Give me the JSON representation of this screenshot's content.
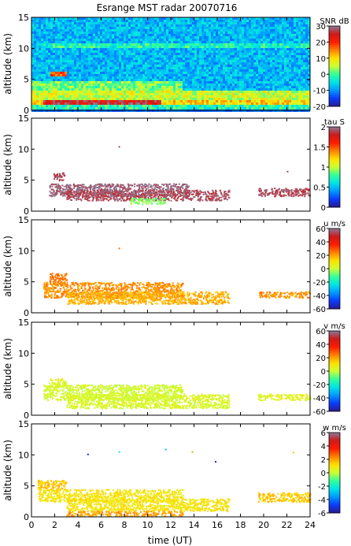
{
  "figure": {
    "title": "Esrange MST radar 20070716",
    "xlabel": "time (UT)",
    "ylabel": "altitude (km)",
    "xlim": [
      0,
      24
    ],
    "x_ticks": [
      "0",
      "2",
      "4",
      "6",
      "8",
      "10",
      "12",
      "14",
      "16",
      "18",
      "20",
      "22",
      "24"
    ],
    "ylim": [
      0,
      15
    ],
    "y_ticks": [
      "0",
      "5",
      "10",
      "15"
    ],
    "colormap": [
      "#2a1a8f",
      "#0a3cff",
      "#0099ff",
      "#00e5e5",
      "#33ff99",
      "#ccff33",
      "#ffe000",
      "#ff8000",
      "#ff1a00",
      "#cc1a1a",
      "#8a7a9a"
    ]
  },
  "chart_data": [
    {
      "type": "heatmap",
      "panel": "snr",
      "colorbar_label": "SNR dB",
      "clim": [
        -20,
        30
      ],
      "colorbar_ticks": [
        "30",
        "20",
        "10",
        "0",
        "-10",
        "-20"
      ],
      "background_value": -8,
      "layers": [
        {
          "altitude": [
            0.3,
            1.0
          ],
          "time": [
            0,
            24
          ],
          "value": -2
        },
        {
          "altitude": [
            1.0,
            2.0
          ],
          "time": [
            0,
            24
          ],
          "value": 10
        },
        {
          "altitude": [
            1.0,
            1.8
          ],
          "time": [
            1,
            11
          ],
          "value": 25
        },
        {
          "altitude": [
            2.0,
            3.5
          ],
          "time": [
            0,
            24
          ],
          "value": 6
        },
        {
          "altitude": [
            3.5,
            5.0
          ],
          "time": [
            0,
            13
          ],
          "value": 2
        },
        {
          "altitude": [
            5.5,
            6.5
          ],
          "time": [
            1.5,
            3
          ],
          "value": 18
        },
        {
          "altitude": [
            10.4,
            10.9
          ],
          "time": [
            1,
            24
          ],
          "value": -2
        }
      ]
    },
    {
      "type": "scatter",
      "panel": "tau",
      "colorbar_label": "tau S",
      "clim": [
        0,
        2
      ],
      "colorbar_ticks": [
        "2",
        "1.5",
        "1",
        "0.5",
        "0"
      ],
      "clusters": [
        {
          "time": [
            1.8,
            2.8
          ],
          "altitude": [
            5.0,
            6.3
          ],
          "value": 1.9
        },
        {
          "time": [
            1.5,
            13.5
          ],
          "altitude": [
            2.5,
            4.5
          ],
          "value": 1.95
        },
        {
          "time": [
            3.0,
            17.0
          ],
          "altitude": [
            1.8,
            3.5
          ],
          "value": 1.9
        },
        {
          "time": [
            8.5,
            11.5
          ],
          "altitude": [
            1.2,
            2.2
          ],
          "value": 0.9
        },
        {
          "time": [
            19.5,
            24.0
          ],
          "altitude": [
            2.5,
            3.8
          ],
          "value": 1.9
        }
      ],
      "points": [
        {
          "time": 7.5,
          "altitude": 10.5,
          "value": 1.9
        },
        {
          "time": 22.0,
          "altitude": 6.5,
          "value": 1.9
        }
      ]
    },
    {
      "type": "scatter",
      "panel": "u",
      "colorbar_label": "u m/s",
      "clim": [
        -60,
        60
      ],
      "colorbar_ticks": [
        "60",
        "40",
        "20",
        "0",
        "-20",
        "-40",
        "-60"
      ],
      "clusters": [
        {
          "time": [
            1.5,
            3.0
          ],
          "altitude": [
            4.5,
            6.5
          ],
          "value": 25
        },
        {
          "time": [
            1.0,
            13.0
          ],
          "altitude": [
            2.5,
            5.0
          ],
          "value": 22
        },
        {
          "time": [
            3.0,
            17.0
          ],
          "altitude": [
            1.5,
            3.5
          ],
          "value": 18
        },
        {
          "time": [
            19.5,
            24.0
          ],
          "altitude": [
            2.5,
            3.5
          ],
          "value": 22
        }
      ],
      "points": [
        {
          "time": 7.5,
          "altitude": 10.5,
          "value": 25
        }
      ]
    },
    {
      "type": "scatter",
      "panel": "v",
      "colorbar_label": "v m/s",
      "clim": [
        -60,
        60
      ],
      "colorbar_ticks": [
        "60",
        "40",
        "20",
        "0",
        "-20",
        "-40",
        "-60"
      ],
      "clusters": [
        {
          "time": [
            1.5,
            3.0
          ],
          "altitude": [
            4.5,
            6.0
          ],
          "value": 5
        },
        {
          "time": [
            1.0,
            13.0
          ],
          "altitude": [
            2.5,
            5.0
          ],
          "value": 2
        },
        {
          "time": [
            3.0,
            17.0
          ],
          "altitude": [
            1.2,
            3.5
          ],
          "value": 3
        },
        {
          "time": [
            19.5,
            24.0
          ],
          "altitude": [
            2.5,
            3.5
          ],
          "value": 5
        }
      ],
      "points": []
    },
    {
      "type": "scatter",
      "panel": "w",
      "colorbar_label": "w m/s",
      "clim": [
        -6,
        6
      ],
      "colorbar_ticks": [
        "6",
        "4",
        "2",
        "0",
        "-2",
        "-4",
        "-6"
      ],
      "clusters": [
        {
          "time": [
            0.5,
            3.0
          ],
          "altitude": [
            4.5,
            6.0
          ],
          "value": 1.5
        },
        {
          "time": [
            0.5,
            13.0
          ],
          "altitude": [
            2.5,
            4.5
          ],
          "value": 1.0
        },
        {
          "time": [
            3.0,
            17.0
          ],
          "altitude": [
            1.0,
            3.0
          ],
          "value": 1.0
        },
        {
          "time": [
            3.0,
            13.0
          ],
          "altitude": [
            0.2,
            1.0
          ],
          "value": 2.0
        },
        {
          "time": [
            19.5,
            24.0
          ],
          "altitude": [
            2.5,
            4.0
          ],
          "value": 1.5
        }
      ],
      "points": [
        {
          "time": 4.8,
          "altitude": 10.2,
          "value": -5
        },
        {
          "time": 7.5,
          "altitude": 10.6,
          "value": -2
        },
        {
          "time": 11.5,
          "altitude": 11.0,
          "value": -3
        },
        {
          "time": 15.8,
          "altitude": 9.0,
          "value": -6
        },
        {
          "time": 13.8,
          "altitude": 10.6,
          "value": 2
        },
        {
          "time": 22.5,
          "altitude": 10.5,
          "value": 1.5
        }
      ]
    }
  ]
}
